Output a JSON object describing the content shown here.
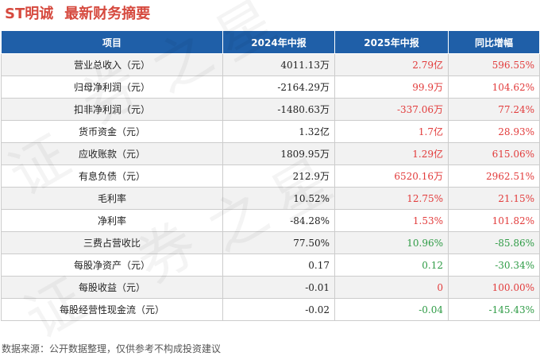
{
  "header": {
    "company": "ST明诚",
    "title": "最新财务摘要"
  },
  "table": {
    "columns": [
      "项目",
      "2024年中报",
      "2025年中报",
      "同比增幅"
    ],
    "rows": [
      {
        "item": "营业总收入（元）",
        "y2024": "4011.13万",
        "y2025": "2.79亿",
        "y2025_dir": "up",
        "yoy": "596.55%",
        "yoy_dir": "up"
      },
      {
        "item": "归母净利润（元）",
        "y2024": "-2164.29万",
        "y2025": "99.9万",
        "y2025_dir": "up",
        "yoy": "104.62%",
        "yoy_dir": "up"
      },
      {
        "item": "扣非净利润（元）",
        "y2024": "-1480.63万",
        "y2025": "-337.06万",
        "y2025_dir": "up",
        "yoy": "77.24%",
        "yoy_dir": "up"
      },
      {
        "item": "货币资金（元）",
        "y2024": "1.32亿",
        "y2025": "1.7亿",
        "y2025_dir": "up",
        "yoy": "28.93%",
        "yoy_dir": "up"
      },
      {
        "item": "应收账款（元）",
        "y2024": "1809.95万",
        "y2025": "1.29亿",
        "y2025_dir": "up",
        "yoy": "615.06%",
        "yoy_dir": "up"
      },
      {
        "item": "有息负债（元）",
        "y2024": "212.9万",
        "y2025": "6520.16万",
        "y2025_dir": "up",
        "yoy": "2962.51%",
        "yoy_dir": "up"
      },
      {
        "item": "毛利率",
        "y2024": "10.52%",
        "y2025": "12.75%",
        "y2025_dir": "up",
        "yoy": "21.15%",
        "yoy_dir": "up"
      },
      {
        "item": "净利率",
        "y2024": "-84.28%",
        "y2025": "1.53%",
        "y2025_dir": "up",
        "yoy": "101.82%",
        "yoy_dir": "up"
      },
      {
        "item": "三费占营收比",
        "y2024": "77.50%",
        "y2025": "10.96%",
        "y2025_dir": "down",
        "yoy": "-85.86%",
        "yoy_dir": "down"
      },
      {
        "item": "每股净资产（元）",
        "y2024": "0.17",
        "y2025": "0.12",
        "y2025_dir": "down",
        "yoy": "-30.34%",
        "yoy_dir": "down"
      },
      {
        "item": "每股收益（元）",
        "y2024": "-0.01",
        "y2025": "0",
        "y2025_dir": "up",
        "yoy": "100.00%",
        "yoy_dir": "up"
      },
      {
        "item": "每股经营性现金流（元）",
        "y2024": "-0.02",
        "y2025": "-0.04",
        "y2025_dir": "down",
        "yoy": "-145.43%",
        "yoy_dir": "down"
      }
    ]
  },
  "footer": {
    "source": "数据来源：公开数据整理，仅供参考不构成投资建议"
  },
  "watermark": [
    "证",
    "券",
    "之",
    "星",
    "证",
    "券",
    "之",
    "星"
  ],
  "colors": {
    "title": "#d64a3f",
    "header_bg": "#1f5fa8",
    "up": "#e23b3b",
    "down": "#2e9b45"
  }
}
